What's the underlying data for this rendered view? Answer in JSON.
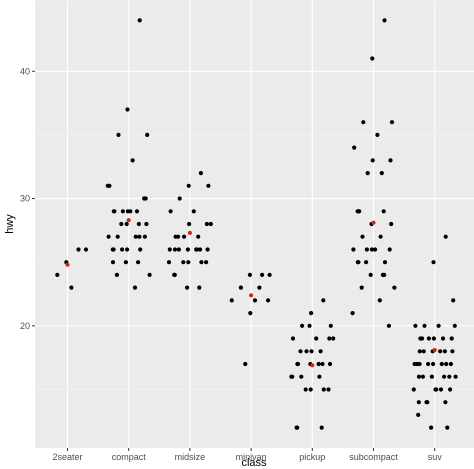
{
  "chart_data": {
    "type": "scatter",
    "xlabel": "class",
    "ylabel": "hwy",
    "categories": [
      "2seater",
      "compact",
      "midsize",
      "minivan",
      "pickup",
      "subcompact",
      "suv"
    ],
    "x_tick_labels": [
      "2seater",
      "compact",
      "midsize",
      "minivan",
      "pickup",
      "subcompact",
      "suv"
    ],
    "y_ticks": [
      20,
      30,
      40
    ],
    "y_tick_labels": [
      "20",
      "30",
      "40"
    ],
    "ylim": [
      10.4,
      45.6
    ],
    "grid": true,
    "legend": "none",
    "jitter_offsets": [
      -0.3,
      0.2,
      -0.05,
      0.35,
      -0.2,
      0.1,
      -0.35,
      0.28,
      0.0,
      -0.12,
      0.18,
      -0.26
    ],
    "series": [
      {
        "name": "",
        "color": "#000000",
        "points": [
          [
            "2seater",
            26
          ],
          [
            "2seater",
            25
          ],
          [
            "2seater",
            26
          ],
          [
            "2seater",
            24
          ],
          [
            "2seater",
            23
          ],
          [
            "compact",
            44
          ],
          [
            "compact",
            37
          ],
          [
            "compact",
            35
          ],
          [
            "compact",
            35
          ],
          [
            "compact",
            33
          ],
          [
            "compact",
            31
          ],
          [
            "compact",
            30
          ],
          [
            "compact",
            29
          ],
          [
            "compact",
            29
          ],
          [
            "compact",
            29
          ],
          [
            "compact",
            29
          ],
          [
            "compact",
            29
          ],
          [
            "compact",
            28
          ],
          [
            "compact",
            28
          ],
          [
            "compact",
            28
          ],
          [
            "compact",
            27
          ],
          [
            "compact",
            27
          ],
          [
            "compact",
            27
          ],
          [
            "compact",
            27
          ],
          [
            "compact",
            26
          ],
          [
            "compact",
            26
          ],
          [
            "compact",
            26
          ],
          [
            "compact",
            26
          ],
          [
            "compact",
            25
          ],
          [
            "compact",
            25
          ],
          [
            "compact",
            25
          ],
          [
            "compact",
            24
          ],
          [
            "compact",
            24
          ],
          [
            "compact",
            23
          ],
          [
            "compact",
            31
          ],
          [
            "compact",
            30
          ],
          [
            "compact",
            29
          ],
          [
            "compact",
            28
          ],
          [
            "compact",
            27
          ],
          [
            "compact",
            26
          ],
          [
            "midsize",
            32
          ],
          [
            "midsize",
            31
          ],
          [
            "midsize",
            31
          ],
          [
            "midsize",
            30
          ],
          [
            "midsize",
            29
          ],
          [
            "midsize",
            29
          ],
          [
            "midsize",
            28
          ],
          [
            "midsize",
            28
          ],
          [
            "midsize",
            27
          ],
          [
            "midsize",
            27
          ],
          [
            "midsize",
            27
          ],
          [
            "midsize",
            26
          ],
          [
            "midsize",
            26
          ],
          [
            "midsize",
            26
          ],
          [
            "midsize",
            26
          ],
          [
            "midsize",
            26
          ],
          [
            "midsize",
            26
          ],
          [
            "midsize",
            26
          ],
          [
            "midsize",
            25
          ],
          [
            "midsize",
            25
          ],
          [
            "midsize",
            25
          ],
          [
            "midsize",
            25
          ],
          [
            "midsize",
            24
          ],
          [
            "midsize",
            24
          ],
          [
            "midsize",
            23
          ],
          [
            "midsize",
            23
          ],
          [
            "midsize",
            28
          ],
          [
            "midsize",
            27
          ],
          [
            "midsize",
            26
          ],
          [
            "midsize",
            25
          ],
          [
            "minivan",
            24
          ],
          [
            "minivan",
            24
          ],
          [
            "minivan",
            24
          ],
          [
            "minivan",
            23
          ],
          [
            "minivan",
            22
          ],
          [
            "minivan",
            22
          ],
          [
            "minivan",
            22
          ],
          [
            "minivan",
            21
          ],
          [
            "minivan",
            17
          ],
          [
            "minivan",
            23
          ],
          [
            "pickup",
            22
          ],
          [
            "pickup",
            21
          ],
          [
            "pickup",
            20
          ],
          [
            "pickup",
            20
          ],
          [
            "pickup",
            19
          ],
          [
            "pickup",
            19
          ],
          [
            "pickup",
            19
          ],
          [
            "pickup",
            18
          ],
          [
            "pickup",
            18
          ],
          [
            "pickup",
            18
          ],
          [
            "pickup",
            17
          ],
          [
            "pickup",
            17
          ],
          [
            "pickup",
            17
          ],
          [
            "pickup",
            17
          ],
          [
            "pickup",
            17
          ],
          [
            "pickup",
            16
          ],
          [
            "pickup",
            16
          ],
          [
            "pickup",
            16
          ],
          [
            "pickup",
            15
          ],
          [
            "pickup",
            15
          ],
          [
            "pickup",
            15
          ],
          [
            "pickup",
            15
          ],
          [
            "pickup",
            12
          ],
          [
            "pickup",
            12
          ],
          [
            "pickup",
            12
          ],
          [
            "pickup",
            20
          ],
          [
            "pickup",
            19
          ],
          [
            "pickup",
            18
          ],
          [
            "pickup",
            17
          ],
          [
            "pickup",
            16
          ],
          [
            "subcompact",
            44
          ],
          [
            "subcompact",
            41
          ],
          [
            "subcompact",
            36
          ],
          [
            "subcompact",
            36
          ],
          [
            "subcompact",
            35
          ],
          [
            "subcompact",
            34
          ],
          [
            "subcompact",
            33
          ],
          [
            "subcompact",
            33
          ],
          [
            "subcompact",
            32
          ],
          [
            "subcompact",
            32
          ],
          [
            "subcompact",
            29
          ],
          [
            "subcompact",
            29
          ],
          [
            "subcompact",
            29
          ],
          [
            "subcompact",
            28
          ],
          [
            "subcompact",
            28
          ],
          [
            "subcompact",
            27
          ],
          [
            "subcompact",
            27
          ],
          [
            "subcompact",
            26
          ],
          [
            "subcompact",
            26
          ],
          [
            "subcompact",
            26
          ],
          [
            "subcompact",
            26
          ],
          [
            "subcompact",
            25
          ],
          [
            "subcompact",
            25
          ],
          [
            "subcompact",
            25
          ],
          [
            "subcompact",
            24
          ],
          [
            "subcompact",
            24
          ],
          [
            "subcompact",
            23
          ],
          [
            "subcompact",
            23
          ],
          [
            "subcompact",
            22
          ],
          [
            "subcompact",
            21
          ],
          [
            "subcompact",
            20
          ],
          [
            "subcompact",
            26
          ],
          [
            "subcompact",
            25
          ],
          [
            "subcompact",
            24
          ],
          [
            "subcompact",
            29
          ],
          [
            "suv",
            27
          ],
          [
            "suv",
            25
          ],
          [
            "suv",
            22
          ],
          [
            "suv",
            20
          ],
          [
            "suv",
            20
          ],
          [
            "suv",
            20
          ],
          [
            "suv",
            19
          ],
          [
            "suv",
            19
          ],
          [
            "suv",
            19
          ],
          [
            "suv",
            19
          ],
          [
            "suv",
            19
          ],
          [
            "suv",
            18
          ],
          [
            "suv",
            18
          ],
          [
            "suv",
            18
          ],
          [
            "suv",
            18
          ],
          [
            "suv",
            18
          ],
          [
            "suv",
            17
          ],
          [
            "suv",
            17
          ],
          [
            "suv",
            17
          ],
          [
            "suv",
            17
          ],
          [
            "suv",
            17
          ],
          [
            "suv",
            17
          ],
          [
            "suv",
            17
          ],
          [
            "suv",
            16
          ],
          [
            "suv",
            16
          ],
          [
            "suv",
            16
          ],
          [
            "suv",
            16
          ],
          [
            "suv",
            16
          ],
          [
            "suv",
            15
          ],
          [
            "suv",
            15
          ],
          [
            "suv",
            15
          ],
          [
            "suv",
            15
          ],
          [
            "suv",
            14
          ],
          [
            "suv",
            14
          ],
          [
            "suv",
            14
          ],
          [
            "suv",
            13
          ],
          [
            "suv",
            12
          ],
          [
            "suv",
            12
          ],
          [
            "suv",
            20
          ],
          [
            "suv",
            19
          ],
          [
            "suv",
            18
          ],
          [
            "suv",
            17
          ],
          [
            "suv",
            16
          ],
          [
            "suv",
            15
          ],
          [
            "suv",
            14
          ]
        ]
      },
      {
        "name": "",
        "color": "#cd2a1e",
        "points": [
          [
            "2seater",
            24.8
          ],
          [
            "compact",
            28.3
          ],
          [
            "midsize",
            27.3
          ],
          [
            "minivan",
            22.4
          ],
          [
            "pickup",
            16.9
          ],
          [
            "subcompact",
            28.1
          ],
          [
            "suv",
            18.1
          ]
        ]
      }
    ]
  }
}
